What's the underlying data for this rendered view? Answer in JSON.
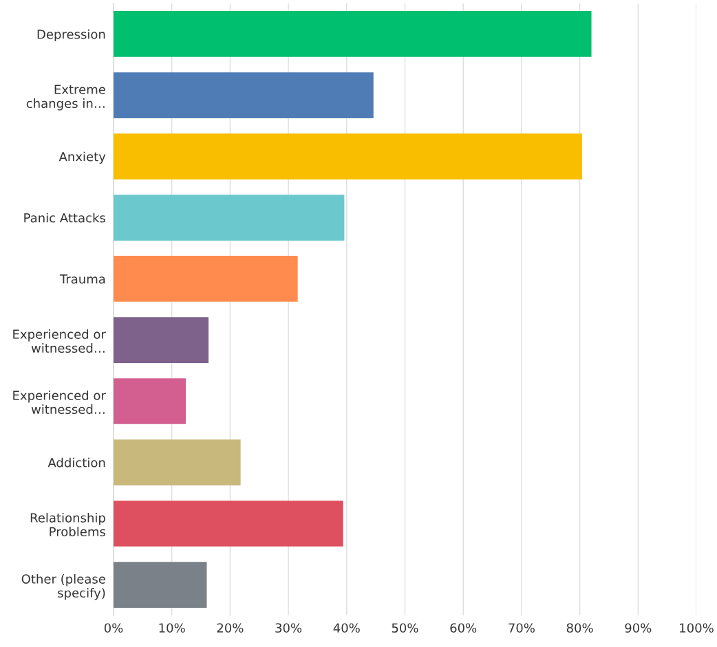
{
  "chart_data": {
    "type": "bar",
    "orientation": "horizontal",
    "categories": [
      "Depression",
      "Extreme\nchanges in…",
      "Anxiety",
      "Panic Attacks",
      "Trauma",
      "Experienced or\nwitnessed…",
      "Experienced or\nwitnessed…",
      "Addiction",
      "Relationship\nProblems",
      "Other (please\nspecify)"
    ],
    "values": [
      82.0,
      44.6,
      80.4,
      39.6,
      31.6,
      16.3,
      12.4,
      21.8,
      39.4,
      16.0
    ],
    "colors": [
      "#00bf6f",
      "#507cb6",
      "#f9be00",
      "#6bc8cd",
      "#ff8b4f",
      "#7f628b",
      "#d25f90",
      "#c8b87b",
      "#de4f5f",
      "#7a8188"
    ],
    "xlim": [
      0,
      100
    ],
    "xticks": [
      {
        "value": 0,
        "label": "0%"
      },
      {
        "value": 10,
        "label": "10%"
      },
      {
        "value": 20,
        "label": "20%"
      },
      {
        "value": 30,
        "label": "30%"
      },
      {
        "value": 40,
        "label": "40%"
      },
      {
        "value": 50,
        "label": "50%"
      },
      {
        "value": 60,
        "label": "60%"
      },
      {
        "value": 70,
        "label": "70%"
      },
      {
        "value": 80,
        "label": "80%"
      },
      {
        "value": 90,
        "label": "90%"
      },
      {
        "value": 100,
        "label": "100%"
      }
    ],
    "grid": "x"
  }
}
